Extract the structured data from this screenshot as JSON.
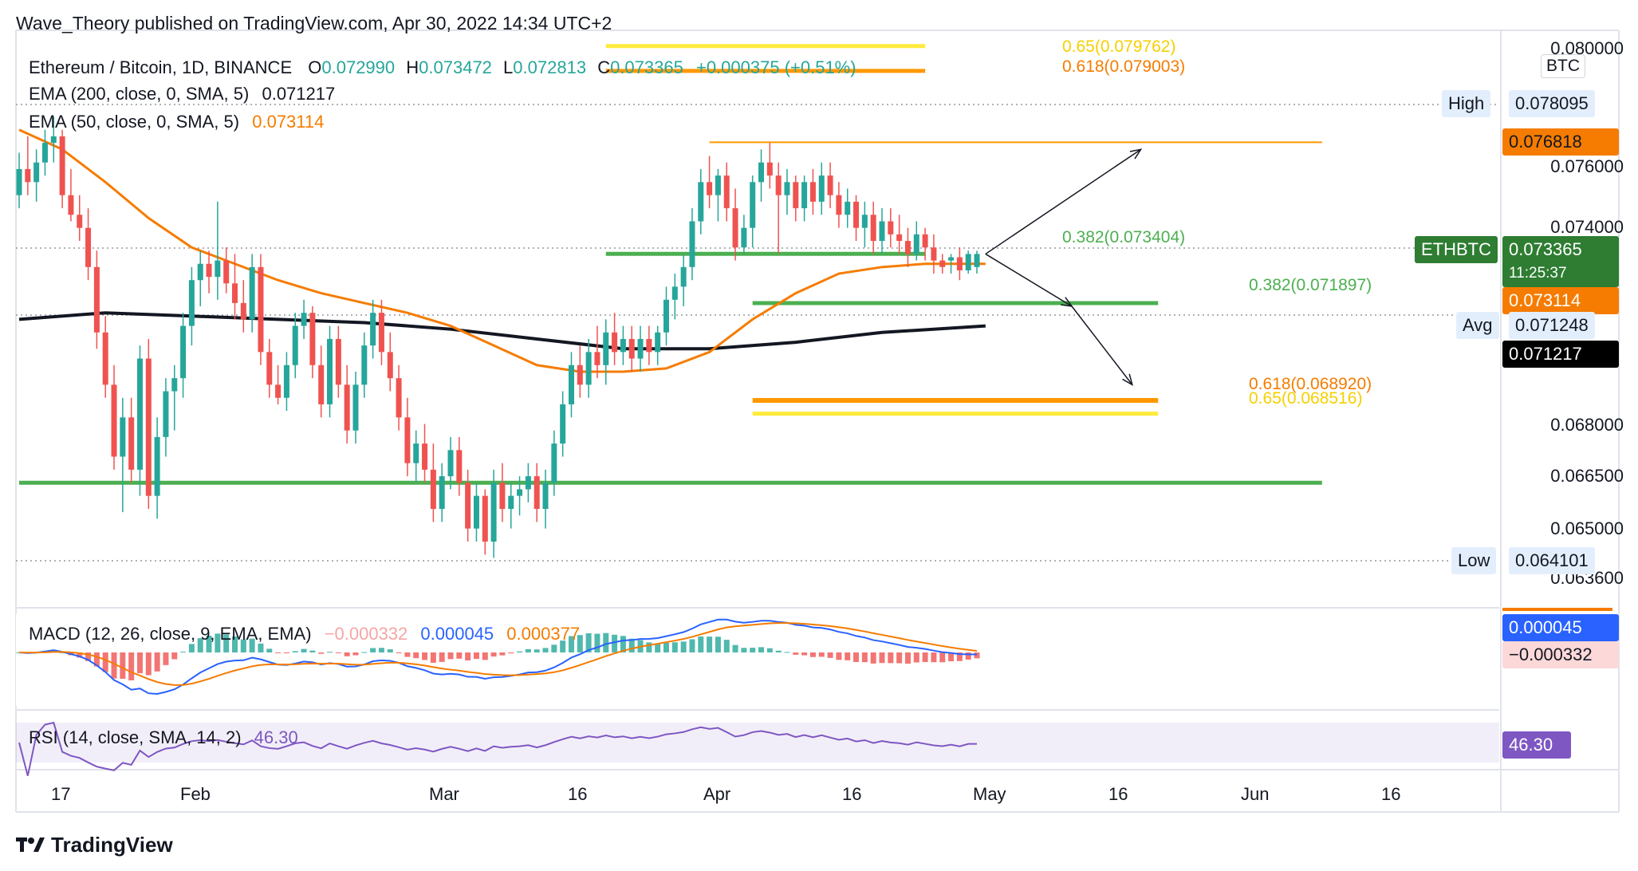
{
  "header": {
    "publisher": "Wave_Theory published on TradingView.com, Apr 30, 2022 14:34 UTC+2"
  },
  "legend": {
    "symbol": "Ethereum / Bitcoin, 1D, BINANCE",
    "open_label": "O",
    "open": "0.072990",
    "high_label": "H",
    "high": "0.073472",
    "low_label": "L",
    "low": "0.072813",
    "close_label": "C",
    "close": "0.073365",
    "change": "+0.000375 (+0.51%)",
    "ema200_label": "EMA (200, close, 0, SMA, 5)",
    "ema200_value": "0.071217",
    "ema50_label": "EMA (50, close, 0, SMA, 5)",
    "ema50_value": "0.073114",
    "macd_label": "MACD (12, 26, close, 9, EMA, EMA)",
    "macd_hist": "−0.000332",
    "macd_line": "0.000045",
    "macd_signal": "0.000377",
    "rsi_label": "RSI (14, close, SMA, 14, 2)",
    "rsi_value": "46.30"
  },
  "price_axis": {
    "currency": "BTC",
    "ticks": [
      "0.080000",
      "0.076000",
      "0.074000",
      "0.068000",
      "0.066500",
      "0.065000",
      "0.063600"
    ],
    "high_label": "High",
    "high_value": "0.078095",
    "low_label": "Low",
    "low_value": "0.064101",
    "avg_label": "Avg",
    "avg_value": "0.071248",
    "resistance_value": "0.076818",
    "symbol_tag": "ETHBTC",
    "last_price": "0.073365",
    "countdown": "11:25:37",
    "ema50_tag": "0.073114",
    "ema200_tag": "0.071217",
    "macd_line_tag": "0.000045",
    "macd_hist_tag": "−0.000332",
    "rsi_tag": "46.30"
  },
  "fib_labels": {
    "top_65": "0.65(0.079762)",
    "top_618": "0.618(0.079003)",
    "mid_382": "0.382(0.073404)",
    "low_382": "0.382(0.071897)",
    "low_618": "0.618(0.068920)",
    "low_65": "0.65(0.068516)"
  },
  "time_axis": {
    "ticks": [
      "17",
      "Feb",
      "Mar",
      "16",
      "Apr",
      "16",
      "May",
      "16",
      "Jun",
      "16"
    ]
  },
  "footer": {
    "brand": "TradingView"
  },
  "colors": {
    "up": "#26a69a",
    "down": "#ef5350",
    "ema50": "#f57c00",
    "ema200": "#131722",
    "fib_green": "#4caf50",
    "fib_orange": "#ff9800",
    "fib_yellow": "#ffeb3b",
    "macd_line": "#2962ff",
    "macd_signal": "#f57c00",
    "rsi": "#7e57c2"
  },
  "chart_data": {
    "type": "candlestick",
    "title": "Ethereum / Bitcoin, 1D, BINANCE",
    "ylim": [
      0.0636,
      0.08
    ],
    "x_start": "2022-01-09",
    "days": 112,
    "candles": [
      [
        0.0752,
        0.0765,
        0.0748,
        0.076
      ],
      [
        0.076,
        0.077,
        0.0752,
        0.0756
      ],
      [
        0.0756,
        0.0766,
        0.075,
        0.0762
      ],
      [
        0.0762,
        0.0772,
        0.0758,
        0.0768
      ],
      [
        0.0768,
        0.0776,
        0.0762,
        0.077
      ],
      [
        0.077,
        0.0772,
        0.0748,
        0.0752
      ],
      [
        0.0752,
        0.076,
        0.0744,
        0.0746
      ],
      [
        0.0746,
        0.0752,
        0.0738,
        0.0742
      ],
      [
        0.0742,
        0.0748,
        0.0726,
        0.073
      ],
      [
        0.073,
        0.0735,
        0.0705,
        0.071
      ],
      [
        0.071,
        0.0715,
        0.069,
        0.0694
      ],
      [
        0.0694,
        0.07,
        0.0668,
        0.0672
      ],
      [
        0.0672,
        0.069,
        0.0655,
        0.0684
      ],
      [
        0.0684,
        0.069,
        0.0664,
        0.0668
      ],
      [
        0.0668,
        0.0706,
        0.066,
        0.0702
      ],
      [
        0.0702,
        0.0708,
        0.0656,
        0.066
      ],
      [
        0.066,
        0.0684,
        0.0653,
        0.0678
      ],
      [
        0.0678,
        0.0696,
        0.0672,
        0.0692
      ],
      [
        0.0692,
        0.07,
        0.068,
        0.0696
      ],
      [
        0.0696,
        0.0716,
        0.069,
        0.0712
      ],
      [
        0.0712,
        0.073,
        0.0706,
        0.0726
      ],
      [
        0.0726,
        0.0735,
        0.0718,
        0.0731
      ],
      [
        0.0731,
        0.0735,
        0.0722,
        0.0727
      ],
      [
        0.0727,
        0.075,
        0.072,
        0.0732
      ],
      [
        0.0732,
        0.0736,
        0.0722,
        0.0725
      ],
      [
        0.0725,
        0.0734,
        0.0714,
        0.0719
      ],
      [
        0.0719,
        0.0726,
        0.071,
        0.0714
      ],
      [
        0.0714,
        0.0734,
        0.071,
        0.073
      ],
      [
        0.073,
        0.0734,
        0.07,
        0.0704
      ],
      [
        0.0704,
        0.0708,
        0.069,
        0.0694
      ],
      [
        0.0694,
        0.07,
        0.0688,
        0.069
      ],
      [
        0.069,
        0.0704,
        0.0686,
        0.07
      ],
      [
        0.07,
        0.0716,
        0.0696,
        0.0712
      ],
      [
        0.0712,
        0.072,
        0.0708,
        0.0716
      ],
      [
        0.0716,
        0.0718,
        0.0696,
        0.07
      ],
      [
        0.07,
        0.0706,
        0.0684,
        0.0688
      ],
      [
        0.0688,
        0.0712,
        0.0684,
        0.0708
      ],
      [
        0.0708,
        0.0712,
        0.069,
        0.0694
      ],
      [
        0.0694,
        0.07,
        0.0676,
        0.068
      ],
      [
        0.068,
        0.0698,
        0.0676,
        0.0694
      ],
      [
        0.0694,
        0.071,
        0.069,
        0.0706
      ],
      [
        0.0706,
        0.072,
        0.0702,
        0.0716
      ],
      [
        0.0716,
        0.072,
        0.07,
        0.0704
      ],
      [
        0.0704,
        0.071,
        0.0692,
        0.0696
      ],
      [
        0.0696,
        0.07,
        0.068,
        0.0684
      ],
      [
        0.0684,
        0.069,
        0.0666,
        0.067
      ],
      [
        0.067,
        0.068,
        0.0664,
        0.0676
      ],
      [
        0.0676,
        0.0682,
        0.0664,
        0.0668
      ],
      [
        0.0668,
        0.0676,
        0.0652,
        0.0656
      ],
      [
        0.0656,
        0.067,
        0.0652,
        0.0666
      ],
      [
        0.0666,
        0.0678,
        0.0662,
        0.0674
      ],
      [
        0.0674,
        0.0678,
        0.066,
        0.0664
      ],
      [
        0.0664,
        0.0668,
        0.0646,
        0.065
      ],
      [
        0.065,
        0.0664,
        0.0646,
        0.066
      ],
      [
        0.066,
        0.0662,
        0.0642,
        0.0646
      ],
      [
        0.0646,
        0.0668,
        0.0641,
        0.0664
      ],
      [
        0.0664,
        0.067,
        0.0652,
        0.0656
      ],
      [
        0.0656,
        0.0664,
        0.065,
        0.066
      ],
      [
        0.066,
        0.0666,
        0.0654,
        0.0662
      ],
      [
        0.0662,
        0.067,
        0.0658,
        0.0666
      ],
      [
        0.0666,
        0.067,
        0.0652,
        0.0656
      ],
      [
        0.0656,
        0.0668,
        0.065,
        0.0664
      ],
      [
        0.0664,
        0.068,
        0.066,
        0.0676
      ],
      [
        0.0676,
        0.0692,
        0.0672,
        0.0688
      ],
      [
        0.0688,
        0.0704,
        0.0684,
        0.07
      ],
      [
        0.07,
        0.0706,
        0.069,
        0.0694
      ],
      [
        0.0694,
        0.0708,
        0.069,
        0.0704
      ],
      [
        0.0704,
        0.0712,
        0.0696,
        0.07
      ],
      [
        0.07,
        0.0714,
        0.0694,
        0.071
      ],
      [
        0.071,
        0.0716,
        0.07,
        0.0704
      ],
      [
        0.0704,
        0.0712,
        0.07,
        0.0708
      ],
      [
        0.0708,
        0.0712,
        0.0698,
        0.0702
      ],
      [
        0.0702,
        0.0712,
        0.0698,
        0.0708
      ],
      [
        0.0708,
        0.0712,
        0.07,
        0.0704
      ],
      [
        0.0704,
        0.0712,
        0.07,
        0.071
      ],
      [
        0.071,
        0.0724,
        0.0706,
        0.072
      ],
      [
        0.072,
        0.0728,
        0.0714,
        0.0724
      ],
      [
        0.0724,
        0.0734,
        0.0718,
        0.073
      ],
      [
        0.073,
        0.0748,
        0.0726,
        0.0744
      ],
      [
        0.0744,
        0.076,
        0.074,
        0.0756
      ],
      [
        0.0756,
        0.0764,
        0.0748,
        0.0752
      ],
      [
        0.0752,
        0.076,
        0.0744,
        0.0758
      ],
      [
        0.0758,
        0.0762,
        0.0744,
        0.0748
      ],
      [
        0.0748,
        0.0754,
        0.0732,
        0.0736
      ],
      [
        0.0736,
        0.0746,
        0.0734,
        0.0742
      ],
      [
        0.0742,
        0.0758,
        0.0736,
        0.0756
      ],
      [
        0.0756,
        0.0766,
        0.075,
        0.0762
      ],
      [
        0.0762,
        0.0768,
        0.0754,
        0.0758
      ],
      [
        0.0758,
        0.0762,
        0.0734,
        0.0752
      ],
      [
        0.0752,
        0.076,
        0.0746,
        0.0756
      ],
      [
        0.0756,
        0.0758,
        0.0744,
        0.0748
      ],
      [
        0.0748,
        0.0758,
        0.0744,
        0.0756
      ],
      [
        0.0756,
        0.076,
        0.0746,
        0.075
      ],
      [
        0.075,
        0.0762,
        0.0746,
        0.0758
      ],
      [
        0.0758,
        0.0762,
        0.0748,
        0.0752
      ],
      [
        0.0752,
        0.0756,
        0.0742,
        0.0746
      ],
      [
        0.0746,
        0.0754,
        0.0742,
        0.075
      ],
      [
        0.075,
        0.0752,
        0.0738,
        0.0742
      ],
      [
        0.0742,
        0.075,
        0.0736,
        0.0746
      ],
      [
        0.0746,
        0.075,
        0.0734,
        0.0738
      ],
      [
        0.0738,
        0.0748,
        0.0734,
        0.0744
      ],
      [
        0.0744,
        0.0748,
        0.0736,
        0.074
      ],
      [
        0.074,
        0.0746,
        0.0734,
        0.0738
      ],
      [
        0.0738,
        0.0742,
        0.073,
        0.0734
      ],
      [
        0.0734,
        0.0744,
        0.0732,
        0.074
      ],
      [
        0.074,
        0.0742,
        0.0732,
        0.0736
      ],
      [
        0.0736,
        0.074,
        0.0728,
        0.0732
      ],
      [
        0.0732,
        0.0734,
        0.0728,
        0.073
      ],
      [
        0.0732,
        0.0734,
        0.0728,
        0.0733
      ],
      [
        0.0733,
        0.0736,
        0.0726,
        0.0729
      ],
      [
        0.0729,
        0.0735,
        0.0728,
        0.0734
      ],
      [
        0.073,
        0.0735,
        0.0728,
        0.0734
      ]
    ],
    "ema50": [
      [
        0,
        0.0772
      ],
      [
        5,
        0.0766
      ],
      [
        10,
        0.0756
      ],
      [
        15,
        0.0745
      ],
      [
        20,
        0.0736
      ],
      [
        25,
        0.0731
      ],
      [
        30,
        0.0726
      ],
      [
        35,
        0.0722
      ],
      [
        40,
        0.0719
      ],
      [
        45,
        0.0716
      ],
      [
        50,
        0.0712
      ],
      [
        55,
        0.0706
      ],
      [
        60,
        0.07
      ],
      [
        65,
        0.0698
      ],
      [
        70,
        0.0698
      ],
      [
        75,
        0.0699
      ],
      [
        80,
        0.0704
      ],
      [
        85,
        0.0714
      ],
      [
        90,
        0.0722
      ],
      [
        95,
        0.0728
      ],
      [
        100,
        0.073
      ],
      [
        105,
        0.0731
      ],
      [
        112,
        0.0731
      ]
    ],
    "ema200": [
      [
        0,
        0.0714
      ],
      [
        10,
        0.0716
      ],
      [
        20,
        0.0715
      ],
      [
        30,
        0.0714
      ],
      [
        40,
        0.0713
      ],
      [
        50,
        0.0711
      ],
      [
        60,
        0.0708
      ],
      [
        70,
        0.0705
      ],
      [
        80,
        0.0705
      ],
      [
        90,
        0.0707
      ],
      [
        100,
        0.071
      ],
      [
        112,
        0.0712
      ]
    ],
    "levels": [
      {
        "y": 0.079762,
        "x1": 68,
        "x2": 105
      },
      {
        "y": 0.079003,
        "x1": 68,
        "x2": 105
      },
      {
        "y": 0.073404,
        "x1": 68,
        "x2": 105
      },
      {
        "y": 0.071897,
        "x1": 85,
        "x2": 132
      },
      {
        "y": 0.06892,
        "x1": 85,
        "x2": 132
      },
      {
        "y": 0.068516,
        "x1": 85,
        "x2": 132
      },
      {
        "y": 0.076818,
        "x1": 80,
        "x2": 151
      },
      {
        "y": 0.0664,
        "x1": 0,
        "x2": 151
      }
    ],
    "projections": [
      {
        "from": [
          112,
          0.0734
        ],
        "to": [
          130,
          0.0766
        ]
      },
      {
        "from": [
          112,
          0.0734
        ],
        "to": [
          122,
          0.0718
        ]
      },
      {
        "from": [
          122,
          0.0718
        ],
        "to": [
          129,
          0.0694
        ]
      }
    ]
  }
}
